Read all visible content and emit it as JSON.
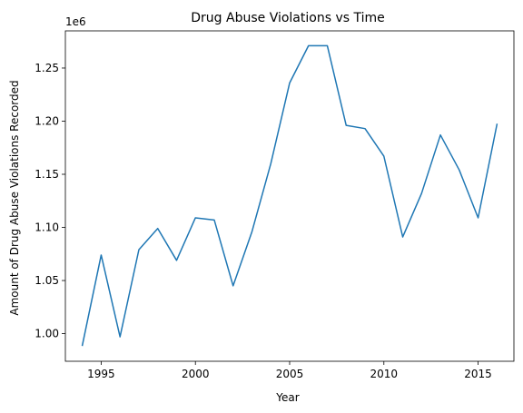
{
  "chart_data": {
    "type": "line",
    "title": "Drug Abuse Violations vs Time",
    "xlabel": "Year",
    "ylabel": "Amount of Drug Abuse Violations Recorded",
    "y_offset_text": "1e6",
    "xlim": [
      1993.1,
      2016.9
    ],
    "ylim": [
      0.974,
      1.285
    ],
    "x_ticks": [
      1995,
      2000,
      2005,
      2010,
      2015
    ],
    "x_tick_labels": [
      "1995",
      "2000",
      "2005",
      "2010",
      "2015"
    ],
    "y_ticks": [
      1.0,
      1.05,
      1.1,
      1.15,
      1.2,
      1.25
    ],
    "y_tick_labels": [
      "1.00",
      "1.05",
      "1.10",
      "1.15",
      "1.20",
      "1.25"
    ],
    "grid": false,
    "line_color": "#1f77b4",
    "series": [
      {
        "x": [
          1994,
          1995,
          1996,
          1997,
          1998,
          1999,
          2000,
          2001,
          2002,
          2003,
          2004,
          2005,
          2006,
          2007,
          2008,
          2009,
          2010,
          2011,
          2012,
          2013,
          2014,
          2015,
          2016
        ],
        "y": [
          0.989,
          1.074,
          0.997,
          1.079,
          1.099,
          1.069,
          1.109,
          1.107,
          1.045,
          1.096,
          1.16,
          1.236,
          1.271,
          1.271,
          1.196,
          1.193,
          1.167,
          1.091,
          1.132,
          1.187,
          1.154,
          1.109,
          1.197
        ]
      }
    ]
  }
}
